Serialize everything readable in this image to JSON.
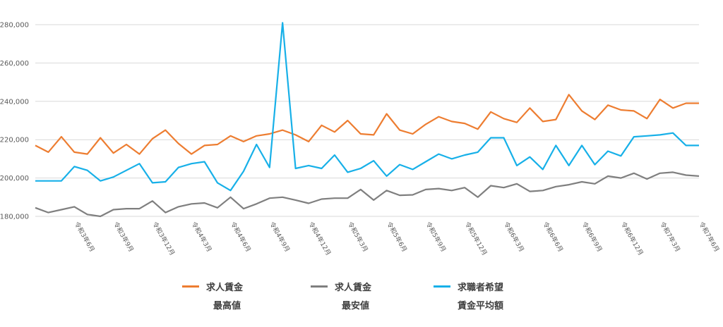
{
  "chart_data": {
    "type": "line",
    "title": "",
    "xlabel": "",
    "ylabel": "",
    "ylim": [
      178000,
      282000
    ],
    "yticks": [
      180000,
      200000,
      220000,
      240000,
      260000,
      280000
    ],
    "ytick_labels": [
      "180,000",
      "200,000",
      "220,000",
      "240,000",
      "260,000",
      "280,000"
    ],
    "grid": true,
    "legend_position": "bottom",
    "x_labels": [
      "令和3年6月",
      "令和3年9月",
      "令和3年12月",
      "令和4年3月",
      "令和4年6月",
      "令和4年9月",
      "令和4年12月",
      "令和5年3月",
      "令和5年6月",
      "令和5年9月",
      "令和5年12月",
      "令和6年3月",
      "令和6年6月",
      "令和6年9月",
      "令和6年12月",
      "令和7年3月",
      "令和7年6月"
    ],
    "x_label_indices": [
      3,
      6,
      9,
      12,
      15,
      18,
      21,
      24,
      27,
      30,
      33,
      36,
      39,
      42,
      45,
      48,
      51
    ],
    "n_points": 52,
    "series": [
      {
        "name_lines": [
          "求人賃金",
          "最高値"
        ],
        "color": "#ED7D31",
        "values": [
          217000,
          213500,
          221500,
          213500,
          212500,
          221000,
          213000,
          217500,
          212500,
          220500,
          225000,
          218000,
          212500,
          217000,
          217500,
          222000,
          219000,
          222000,
          223000,
          225000,
          222500,
          219000,
          227500,
          224000,
          230000,
          223000,
          222500,
          233500,
          225000,
          223000,
          228000,
          232000,
          229500,
          228500,
          225500,
          234500,
          231000,
          229000,
          236500,
          229500,
          230500,
          243500,
          235000,
          230500,
          238000,
          235500,
          235000,
          231000,
          241000,
          236500,
          239000,
          239000
        ]
      },
      {
        "name_lines": [
          "求人賃金",
          "最安値"
        ],
        "color": "#7F7F7F",
        "values": [
          184500,
          182000,
          183500,
          185000,
          181000,
          180000,
          183500,
          184000,
          184000,
          188000,
          182000,
          185000,
          186500,
          187000,
          184500,
          190000,
          184000,
          186500,
          189500,
          190000,
          188500,
          186800,
          189000,
          189500,
          189500,
          194000,
          188500,
          193500,
          191000,
          191200,
          194000,
          194500,
          193500,
          195000,
          190000,
          196000,
          195000,
          197000,
          193000,
          193500,
          195500,
          196500,
          198000,
          197000,
          201000,
          200000,
          202500,
          199500,
          202500,
          203000,
          201500,
          201000
        ]
      },
      {
        "name_lines": [
          "求職者希望",
          "賃金平均額"
        ],
        "color": "#17B0E8",
        "values": [
          198500,
          198500,
          198500,
          206000,
          204000,
          198500,
          200500,
          204000,
          207500,
          197500,
          198000,
          205500,
          207500,
          208500,
          197500,
          193500,
          203500,
          217500,
          205500,
          281000,
          205000,
          206500,
          205000,
          212000,
          203000,
          205000,
          209000,
          201000,
          207000,
          204500,
          208500,
          212500,
          210000,
          212000,
          213500,
          221000,
          221000,
          206500,
          211000,
          204500,
          217000,
          206500,
          217000,
          207000,
          214000,
          211500,
          221500,
          222000,
          222500,
          223500,
          217000,
          217000
        ]
      }
    ]
  }
}
